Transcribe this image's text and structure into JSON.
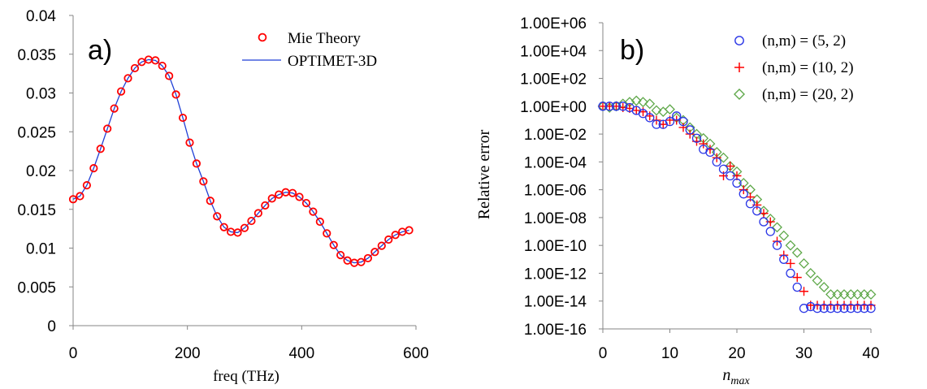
{
  "colors": {
    "mie_marker": "#ff0000",
    "optimet_line": "#1f3fd6",
    "series_5_2": "#2a36e6",
    "series_10_2": "#ff0000",
    "series_20_2": "#5fa84a",
    "axis": "#868686",
    "text": "#000000"
  },
  "chart_data": [
    {
      "type": "scatter",
      "panel_label": "a)",
      "xlabel": "freq (THz)",
      "ylabel": "",
      "xlim": [
        0,
        600
      ],
      "ylim": [
        0,
        0.04
      ],
      "x_ticks": [
        "0",
        "200",
        "400",
        "600"
      ],
      "y_ticks": [
        "0",
        "0.005",
        "0.01",
        "0.015",
        "0.02",
        "0.025",
        "0.03",
        "0.035",
        "0.04"
      ],
      "legend_position": "top-right",
      "grid": false,
      "series": [
        {
          "name": "Mie Theory",
          "marker": "circle",
          "x": [
            0,
            12,
            24,
            36,
            48,
            60,
            72,
            84,
            96,
            108,
            120,
            132,
            144,
            156,
            168,
            180,
            192,
            204,
            216,
            228,
            240,
            252,
            264,
            276,
            288,
            300,
            312,
            324,
            336,
            348,
            360,
            372,
            384,
            396,
            408,
            420,
            432,
            444,
            456,
            468,
            480,
            492,
            504,
            516,
            528,
            540,
            552,
            564,
            576,
            588
          ],
          "y": [
            0.0163,
            0.0167,
            0.0181,
            0.0203,
            0.0228,
            0.0254,
            0.028,
            0.0302,
            0.0319,
            0.0332,
            0.034,
            0.0343,
            0.0342,
            0.0335,
            0.0322,
            0.0298,
            0.0268,
            0.0236,
            0.0209,
            0.0186,
            0.0161,
            0.0141,
            0.0127,
            0.0121,
            0.012,
            0.0126,
            0.0135,
            0.0145,
            0.0155,
            0.0164,
            0.0169,
            0.0172,
            0.0171,
            0.0166,
            0.0158,
            0.0147,
            0.0134,
            0.0119,
            0.0104,
            0.0091,
            0.0084,
            0.0081,
            0.0082,
            0.0087,
            0.0095,
            0.0103,
            0.0111,
            0.0117,
            0.0121,
            0.0123
          ]
        },
        {
          "name": "OPTIMET-3D",
          "marker": "line",
          "x": [
            0,
            12,
            24,
            36,
            48,
            60,
            72,
            84,
            96,
            108,
            120,
            132,
            144,
            156,
            168,
            180,
            192,
            204,
            216,
            228,
            240,
            252,
            264,
            276,
            288,
            300,
            312,
            324,
            336,
            348,
            360,
            372,
            384,
            396,
            408,
            420,
            432,
            444,
            456,
            468,
            480,
            492,
            504,
            516,
            528,
            540,
            552,
            564,
            576,
            588
          ],
          "y": [
            0.0163,
            0.0167,
            0.0181,
            0.0203,
            0.0228,
            0.0254,
            0.028,
            0.0302,
            0.0319,
            0.0332,
            0.034,
            0.0343,
            0.0342,
            0.0335,
            0.0322,
            0.0298,
            0.0268,
            0.0236,
            0.0209,
            0.0186,
            0.0161,
            0.0141,
            0.0127,
            0.0121,
            0.012,
            0.0126,
            0.0135,
            0.0145,
            0.0155,
            0.0164,
            0.0169,
            0.0172,
            0.0171,
            0.0166,
            0.0158,
            0.0147,
            0.0134,
            0.0119,
            0.0104,
            0.0091,
            0.0084,
            0.0081,
            0.0082,
            0.0087,
            0.0095,
            0.0103,
            0.0111,
            0.0117,
            0.0121,
            0.0123
          ]
        }
      ]
    },
    {
      "type": "scatter",
      "panel_label": "b)",
      "xlabel_main": "n",
      "xlabel_sub": "max",
      "ylabel": "Relative error",
      "xlim": [
        0,
        40
      ],
      "ylim": [
        1e-16,
        1000000.0
      ],
      "yscale": "log",
      "x_ticks": [
        "0",
        "10",
        "20",
        "30",
        "40"
      ],
      "y_ticks": [
        "1.00E+06",
        "1.00E+04",
        "1.00E+02",
        "1.00E+00",
        "1.00E-02",
        "1.00E-04",
        "1.00E-06",
        "1.00E-08",
        "1.00E-10",
        "1.00E-12",
        "1.00E-14",
        "1.00E-16"
      ],
      "legend_position": "top-right",
      "grid": false,
      "series": [
        {
          "name": "(n,m) = (5, 2)",
          "marker": "circle",
          "x": [
            0,
            1,
            2,
            3,
            4,
            5,
            6,
            7,
            8,
            9,
            10,
            11,
            12,
            13,
            14,
            15,
            16,
            17,
            18,
            19,
            20,
            21,
            22,
            23,
            24,
            25,
            26,
            27,
            28,
            29,
            30,
            31,
            32,
            33,
            34,
            35,
            36,
            37,
            38,
            39,
            40
          ],
          "y": [
            1,
            1,
            1,
            1,
            0.8,
            0.5,
            0.3,
            0.15,
            0.05,
            0.05,
            0.08,
            0.2,
            0.08,
            0.02,
            0.005,
            0.0008,
            0.0005,
            0.0001,
            3e-05,
            1e-05,
            3e-06,
            5e-07,
            1e-07,
            3e-08,
            5e-09,
            1e-09,
            1e-10,
            1e-11,
            1e-12,
            1e-13,
            3e-15,
            4e-15,
            3e-15,
            3e-15,
            3e-15,
            3e-15,
            3e-15,
            3e-15,
            3e-15,
            3e-15,
            3e-15
          ]
        },
        {
          "name": "(n,m) = (10, 2)",
          "marker": "plus",
          "x": [
            0,
            1,
            2,
            3,
            4,
            5,
            6,
            7,
            8,
            9,
            10,
            11,
            12,
            13,
            14,
            15,
            16,
            17,
            18,
            19,
            20,
            21,
            22,
            23,
            24,
            25,
            26,
            27,
            28,
            29,
            30,
            31,
            32,
            33,
            34,
            35,
            36,
            37,
            38,
            39,
            40
          ],
          "y": [
            1,
            1,
            1,
            0.8,
            0.7,
            0.5,
            0.4,
            0.2,
            0.1,
            0.05,
            0.1,
            0.1,
            0.03,
            0.01,
            0.003,
            0.002,
            0.0008,
            0.0002,
            1e-05,
            5e-05,
            1e-05,
            1e-06,
            3e-07,
            8e-08,
            2e-08,
            5e-09,
            2e-10,
            2e-11,
            5e-12,
            5e-13,
            5e-14,
            5e-15,
            5e-15,
            5e-15,
            5e-15,
            5e-15,
            5e-15,
            5e-15,
            5e-15,
            5e-15,
            5e-15
          ]
        },
        {
          "name": "(n,m) = (20, 2)",
          "marker": "diamond",
          "x": [
            0,
            1,
            2,
            3,
            4,
            5,
            6,
            7,
            8,
            9,
            10,
            11,
            12,
            13,
            14,
            15,
            16,
            17,
            18,
            19,
            20,
            21,
            22,
            23,
            24,
            25,
            26,
            27,
            28,
            29,
            30,
            31,
            32,
            33,
            34,
            35,
            36,
            37,
            38,
            39,
            40
          ],
          "y": [
            1,
            0.8,
            1,
            1.5,
            2,
            2.5,
            2,
            1.5,
            0.5,
            0.4,
            0.6,
            0.15,
            0.1,
            0.03,
            0.01,
            0.005,
            0.002,
            0.0005,
            0.0002,
            5e-05,
            2e-05,
            3e-06,
            1e-06,
            2e-07,
            3e-08,
            8e-09,
            2e-09,
            5e-10,
            1e-10,
            3e-11,
            5e-12,
            1e-12,
            3e-13,
            1e-13,
            3e-14,
            3e-14,
            3e-14,
            3e-14,
            3e-14,
            3e-14,
            3e-14
          ]
        }
      ]
    }
  ]
}
